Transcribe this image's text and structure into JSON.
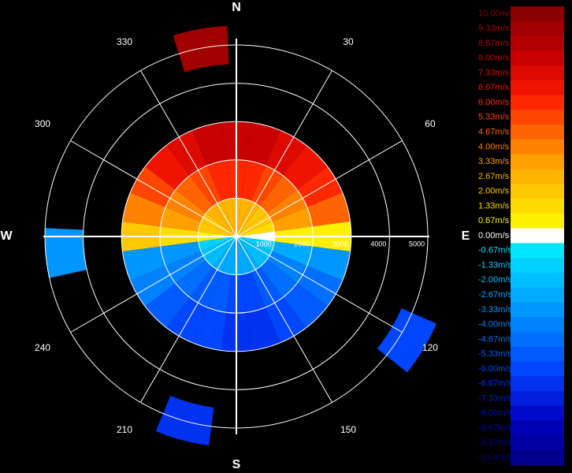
{
  "chart_data": {
    "type": "polar",
    "compass": [
      "N",
      "E",
      "S",
      "W"
    ],
    "azimuth_ticks": [
      30,
      60,
      120,
      150,
      210,
      240,
      300,
      330
    ],
    "rlim": [
      0,
      5000
    ],
    "rticks": [
      1000,
      2000,
      3000,
      4000,
      5000
    ],
    "echoes": {
      "azimuth": [
        0,
        0,
        0,
        15,
        15,
        15,
        30,
        30,
        30,
        45,
        45,
        45,
        60,
        60,
        60,
        75,
        75,
        75,
        90,
        90,
        90,
        105,
        105,
        105,
        120,
        120,
        120,
        135,
        135,
        135,
        150,
        150,
        150,
        165,
        165,
        165,
        180,
        180,
        180,
        195,
        195,
        195,
        210,
        210,
        210,
        225,
        225,
        225,
        240,
        240,
        240,
        255,
        255,
        255,
        270,
        270,
        270,
        285,
        285,
        285,
        300,
        300,
        300,
        315,
        315,
        315,
        330,
        330,
        330,
        345,
        345,
        345,
        121,
        265,
        195,
        350
      ],
      "range": [
        500,
        1500,
        2500,
        500,
        1500,
        2500,
        500,
        1500,
        2500,
        500,
        1500,
        2500,
        500,
        1500,
        2500,
        500,
        1500,
        2500,
        500,
        1500,
        2500,
        500,
        1500,
        2500,
        500,
        1500,
        2500,
        500,
        1500,
        2500,
        500,
        1500,
        2500,
        500,
        1500,
        2500,
        500,
        1500,
        2500,
        500,
        1500,
        2500,
        500,
        1500,
        2500,
        500,
        1500,
        2500,
        500,
        1500,
        2500,
        500,
        1500,
        2500,
        500,
        1500,
        2500,
        500,
        1500,
        2500,
        500,
        1500,
        2500,
        500,
        1500,
        2500,
        500,
        1500,
        2500,
        500,
        1500,
        2500,
        5200,
        4500,
        5000,
        5000
      ],
      "velocity": [
        2.67,
        6.0,
        8.0,
        2.67,
        6.0,
        8.0,
        2.67,
        5.33,
        7.33,
        2.0,
        4.67,
        6.67,
        2.0,
        4.0,
        6.0,
        1.33,
        3.33,
        4.67,
        0.0,
        0.67,
        0.67,
        -1.33,
        -2.67,
        -3.33,
        -2.0,
        -4.0,
        -4.67,
        -2.0,
        -4.67,
        -5.33,
        -2.67,
        -5.33,
        -6.0,
        -2.67,
        -6.0,
        -6.67,
        -2.67,
        -6.0,
        -6.67,
        -2.67,
        -5.33,
        -6.0,
        -2.67,
        -5.33,
        -6.0,
        -2.0,
        -4.67,
        -5.33,
        -2.0,
        -4.0,
        -4.0,
        -1.33,
        -3.33,
        -3.33,
        0.67,
        1.33,
        2.0,
        2.0,
        3.33,
        4.0,
        2.0,
        4.0,
        5.33,
        2.67,
        4.67,
        6.67,
        2.67,
        5.33,
        7.33,
        2.67,
        6.0,
        8.0,
        -6.0,
        -3.33,
        -6.67,
        9.33
      ]
    },
    "colorbar": {
      "levels": [
        10.0,
        9.33,
        8.67,
        8.0,
        7.33,
        6.67,
        6.0,
        5.33,
        4.67,
        4.0,
        3.33,
        2.67,
        2.0,
        1.33,
        0.67,
        0.0,
        -0.67,
        -1.33,
        -2.0,
        -2.67,
        -3.33,
        -4.0,
        -4.67,
        -5.33,
        -6.0,
        -6.67,
        -7.33,
        -8.0,
        -8.67,
        -9.33,
        -10.0
      ],
      "labels": [
        "10.00m/s",
        "9.33m/s",
        "8.67m/s",
        "8.00m/s",
        "7.33m/s",
        "6.67m/s",
        "6.00m/s",
        "5.33m/s",
        "4.67m/s",
        "4.00m/s",
        "3.33m/s",
        "2.67m/s",
        "2.00m/s",
        "1.33m/s",
        "0.67m/s",
        "0.00m/s",
        "-0.67m/s",
        "-1.33m/s",
        "-2.00m/s",
        "-2.67m/s",
        "-3.33m/s",
        "-4.00m/s",
        "-4.67m/s",
        "-5.33m/s",
        "-6.00m/s",
        "-6.67m/s",
        "-7.33m/s",
        "-8.00m/s",
        "-8.67m/s",
        "-9.33m/s",
        "-10.00m/s"
      ],
      "colors": [
        "#8b0000",
        "#a00000",
        "#b40000",
        "#c80000",
        "#dc0a00",
        "#f01400",
        "#ff2800",
        "#ff4600",
        "#ff6400",
        "#ff8200",
        "#ffa000",
        "#ffb400",
        "#ffc800",
        "#ffdc00",
        "#fff000",
        "#ffffff",
        "#00e6ff",
        "#00d2ff",
        "#00beff",
        "#00aaff",
        "#0096ff",
        "#0082ff",
        "#006eff",
        "#005aff",
        "#0046ff",
        "#0032f0",
        "#001edc",
        "#000ac8",
        "#0000b4",
        "#0000a0",
        "#00008c"
      ]
    }
  }
}
